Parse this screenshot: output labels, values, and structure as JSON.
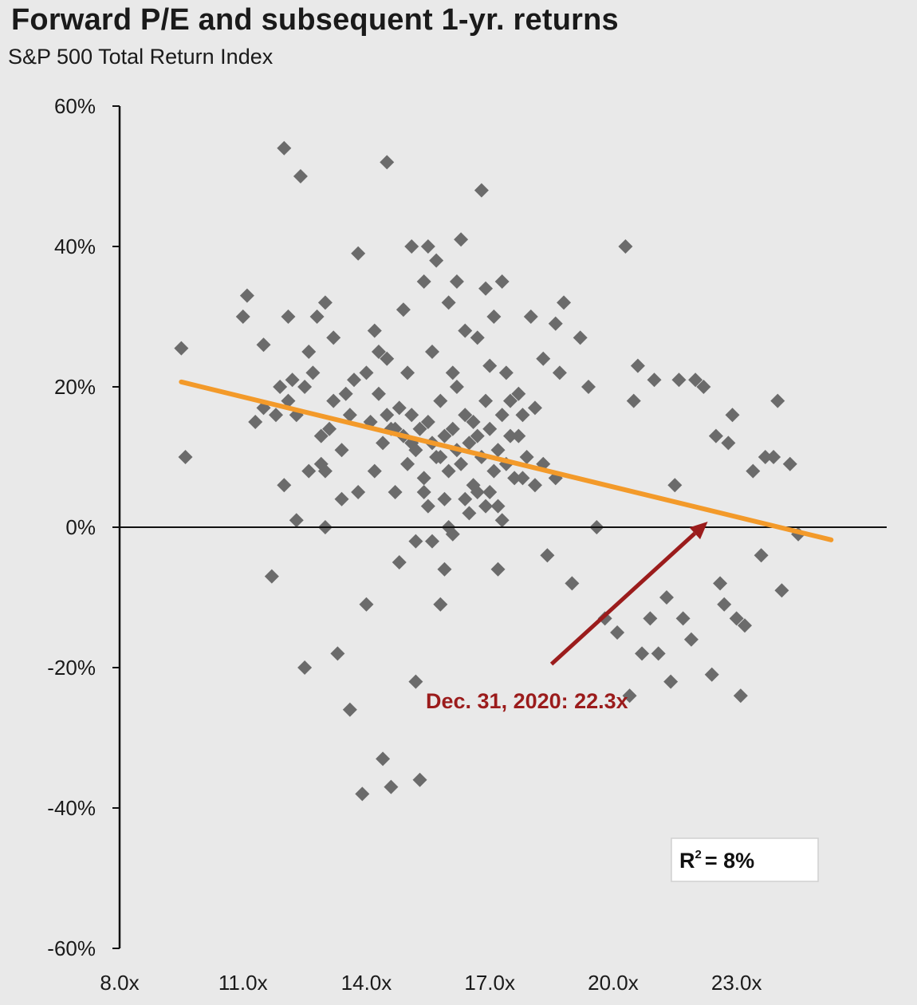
{
  "header": {
    "title": "Forward P/E and subsequent 1-yr. returns",
    "subtitle": "S&P 500 Total Return Index"
  },
  "colors": {
    "background": "#e9e9e9",
    "points": "#6b6b6b",
    "trend": "#f39a2a",
    "annotation": "#9b1c1c",
    "axis": "#111111"
  },
  "chart_data": {
    "type": "scatter",
    "title": "Forward P/E and subsequent 1-yr. returns",
    "subtitle": "S&P 500 Total Return Index",
    "xlabel": "",
    "ylabel": "",
    "xlim": [
      8,
      27
    ],
    "ylim": [
      -60,
      60
    ],
    "x_ticks": [
      8,
      11,
      14,
      17,
      20,
      23
    ],
    "x_tick_labels": [
      "8.0x",
      "11.0x",
      "14.0x",
      "17.0x",
      "20.0x",
      "23.0x"
    ],
    "y_ticks": [
      60,
      40,
      20,
      0,
      -20,
      -40,
      -60
    ],
    "y_tick_labels": [
      "60%",
      "40%",
      "20%",
      "0%",
      "-20%",
      "-40%",
      "-60%"
    ],
    "grid": false,
    "trendline": {
      "x": [
        9.5,
        25.3
      ],
      "y": [
        20.7,
        -1.8
      ]
    },
    "annotation": {
      "text": "Dec. 31, 2020: 22.3x",
      "point": [
        22.3,
        0.8
      ],
      "arrow_from": [
        18.5,
        -19.5
      ]
    },
    "r2_label": {
      "prefix": "R",
      "sup": "2",
      "value": "=   8%"
    },
    "points": [
      [
        9.5,
        25.5
      ],
      [
        9.6,
        10
      ],
      [
        11.0,
        30
      ],
      [
        11.1,
        33
      ],
      [
        11.3,
        15
      ],
      [
        11.5,
        26
      ],
      [
        11.7,
        -7
      ],
      [
        11.9,
        20
      ],
      [
        12.0,
        54
      ],
      [
        12.0,
        6
      ],
      [
        12.1,
        30
      ],
      [
        12.3,
        1
      ],
      [
        12.4,
        50
      ],
      [
        12.5,
        20
      ],
      [
        12.5,
        -20
      ],
      [
        12.6,
        25
      ],
      [
        12.6,
        8
      ],
      [
        12.8,
        30
      ],
      [
        12.9,
        9
      ],
      [
        13.0,
        32
      ],
      [
        13.0,
        0
      ],
      [
        13.1,
        14
      ],
      [
        13.2,
        27
      ],
      [
        13.3,
        -18
      ],
      [
        13.4,
        4
      ],
      [
        13.5,
        19
      ],
      [
        13.6,
        -26
      ],
      [
        13.8,
        39
      ],
      [
        13.8,
        5
      ],
      [
        13.9,
        -38
      ],
      [
        14.0,
        -11
      ],
      [
        14.0,
        22
      ],
      [
        14.2,
        28
      ],
      [
        14.3,
        25
      ],
      [
        14.4,
        -33
      ],
      [
        14.5,
        52
      ],
      [
        14.6,
        -37
      ],
      [
        14.7,
        14
      ],
      [
        14.8,
        -5
      ],
      [
        14.9,
        31
      ],
      [
        15.1,
        40
      ],
      [
        15.1,
        12
      ],
      [
        15.2,
        -22
      ],
      [
        15.3,
        -36
      ],
      [
        15.4,
        35
      ],
      [
        15.5,
        40
      ],
      [
        15.6,
        -2
      ],
      [
        15.7,
        38
      ],
      [
        15.8,
        -11
      ],
      [
        15.8,
        10
      ],
      [
        15.9,
        -6
      ],
      [
        16.0,
        32
      ],
      [
        16.1,
        22
      ],
      [
        16.2,
        35
      ],
      [
        16.3,
        41
      ],
      [
        16.4,
        28
      ],
      [
        16.5,
        2
      ],
      [
        16.6,
        15
      ],
      [
        16.7,
        27
      ],
      [
        16.8,
        48
      ],
      [
        16.9,
        34
      ],
      [
        17.0,
        5
      ],
      [
        17.1,
        30
      ],
      [
        17.2,
        -6
      ],
      [
        17.3,
        35
      ],
      [
        17.4,
        22
      ],
      [
        17.5,
        18
      ],
      [
        17.7,
        13
      ],
      [
        17.8,
        7
      ],
      [
        18.0,
        30
      ],
      [
        18.1,
        17
      ],
      [
        18.3,
        24
      ],
      [
        18.4,
        -4
      ],
      [
        18.6,
        29
      ],
      [
        18.7,
        22
      ],
      [
        18.8,
        32
      ],
      [
        19.0,
        -8
      ],
      [
        19.2,
        27
      ],
      [
        19.4,
        20
      ],
      [
        19.6,
        0
      ],
      [
        19.8,
        -13
      ],
      [
        20.1,
        -15
      ],
      [
        20.3,
        40
      ],
      [
        20.4,
        -24
      ],
      [
        20.5,
        18
      ],
      [
        20.6,
        23
      ],
      [
        20.7,
        -18
      ],
      [
        20.9,
        -13
      ],
      [
        21.0,
        21
      ],
      [
        21.1,
        -18
      ],
      [
        21.3,
        -10
      ],
      [
        21.4,
        -22
      ],
      [
        21.5,
        6
      ],
      [
        21.6,
        21
      ],
      [
        21.7,
        -13
      ],
      [
        21.9,
        -16
      ],
      [
        22.0,
        21
      ],
      [
        22.2,
        20
      ],
      [
        22.4,
        -21
      ],
      [
        22.5,
        13
      ],
      [
        22.6,
        -8
      ],
      [
        22.7,
        -11
      ],
      [
        22.8,
        12
      ],
      [
        22.9,
        16
      ],
      [
        23.0,
        -13
      ],
      [
        23.1,
        -24
      ],
      [
        23.2,
        -14
      ],
      [
        23.4,
        8
      ],
      [
        23.6,
        -4
      ],
      [
        23.7,
        10
      ],
      [
        23.9,
        10
      ],
      [
        24.0,
        18
      ],
      [
        24.1,
        -9
      ],
      [
        24.3,
        9
      ],
      [
        24.5,
        -1
      ],
      [
        12.1,
        18
      ],
      [
        12.3,
        16
      ],
      [
        12.7,
        22
      ],
      [
        13.2,
        18
      ],
      [
        13.6,
        16
      ],
      [
        14.1,
        15
      ],
      [
        14.3,
        19
      ],
      [
        14.4,
        12
      ],
      [
        14.5,
        16
      ],
      [
        14.6,
        14
      ],
      [
        14.8,
        17
      ],
      [
        14.9,
        13
      ],
      [
        15.0,
        9
      ],
      [
        15.1,
        16
      ],
      [
        15.2,
        11
      ],
      [
        15.3,
        14
      ],
      [
        15.4,
        7
      ],
      [
        15.5,
        15
      ],
      [
        15.6,
        12
      ],
      [
        15.7,
        10
      ],
      [
        15.8,
        18
      ],
      [
        15.9,
        13
      ],
      [
        16.0,
        8
      ],
      [
        16.1,
        14
      ],
      [
        16.2,
        11
      ],
      [
        16.3,
        9
      ],
      [
        16.4,
        16
      ],
      [
        16.5,
        12
      ],
      [
        16.6,
        6
      ],
      [
        16.7,
        13
      ],
      [
        16.8,
        10
      ],
      [
        16.9,
        18
      ],
      [
        17.0,
        14
      ],
      [
        17.1,
        8
      ],
      [
        17.2,
        11
      ],
      [
        17.3,
        16
      ],
      [
        17.4,
        9
      ],
      [
        17.5,
        13
      ],
      [
        17.6,
        7
      ],
      [
        17.7,
        19
      ],
      [
        17.9,
        10
      ],
      [
        18.1,
        6
      ],
      [
        18.3,
        9
      ],
      [
        18.6,
        7
      ],
      [
        14.2,
        8
      ],
      [
        14.7,
        5
      ],
      [
        15.5,
        3
      ],
      [
        16.0,
        0
      ],
      [
        16.4,
        4
      ],
      [
        16.9,
        3
      ],
      [
        17.3,
        1
      ],
      [
        15.2,
        -2
      ],
      [
        16.1,
        -1
      ],
      [
        13.7,
        21
      ],
      [
        14.5,
        24
      ],
      [
        15.0,
        22
      ],
      [
        15.6,
        25
      ],
      [
        16.2,
        20
      ],
      [
        17.0,
        23
      ],
      [
        17.8,
        16
      ],
      [
        12.9,
        13
      ],
      [
        13.4,
        11
      ],
      [
        11.8,
        16
      ],
      [
        11.5,
        17
      ],
      [
        12.2,
        21
      ],
      [
        13.0,
        8
      ],
      [
        15.4,
        5
      ],
      [
        16.7,
        5
      ],
      [
        17.2,
        3
      ],
      [
        15.9,
        4
      ]
    ]
  }
}
